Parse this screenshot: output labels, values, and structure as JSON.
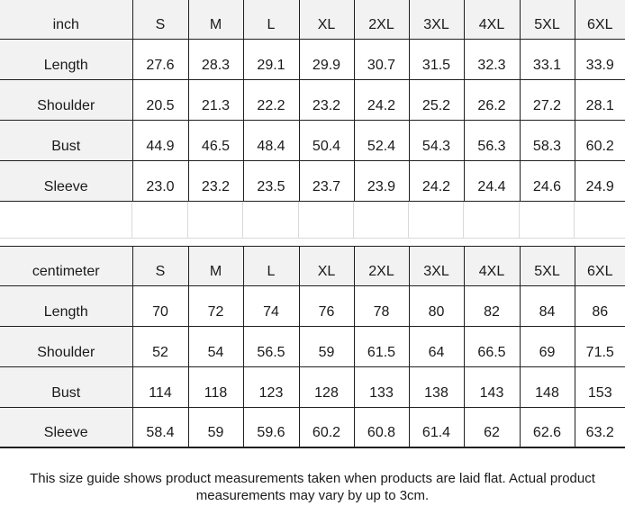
{
  "size_guide": {
    "tables": [
      {
        "unit_label": "inch",
        "sizes": [
          "S",
          "M",
          "L",
          "XL",
          "2XL",
          "3XL",
          "4XL",
          "5XL",
          "6XL"
        ],
        "rows": [
          {
            "label": "Length",
            "values": [
              "27.6",
              "28.3",
              "29.1",
              "29.9",
              "30.7",
              "31.5",
              "32.3",
              "33.1",
              "33.9"
            ]
          },
          {
            "label": "Shoulder",
            "values": [
              "20.5",
              "21.3",
              "22.2",
              "23.2",
              "24.2",
              "25.2",
              "26.2",
              "27.2",
              "28.1"
            ]
          },
          {
            "label": "Bust",
            "values": [
              "44.9",
              "46.5",
              "48.4",
              "50.4",
              "52.4",
              "54.3",
              "56.3",
              "58.3",
              "60.2"
            ]
          },
          {
            "label": "Sleeve",
            "values": [
              "23.0",
              "23.2",
              "23.5",
              "23.7",
              "23.9",
              "24.2",
              "24.4",
              "24.6",
              "24.9"
            ]
          }
        ]
      },
      {
        "unit_label": "centimeter",
        "sizes": [
          "S",
          "M",
          "L",
          "XL",
          "2XL",
          "3XL",
          "4XL",
          "5XL",
          "6XL"
        ],
        "rows": [
          {
            "label": "Length",
            "values": [
              "70",
              "72",
              "74",
              "76",
              "78",
              "80",
              "82",
              "84",
              "86"
            ]
          },
          {
            "label": "Shoulder",
            "values": [
              "52",
              "54",
              "56.5",
              "59",
              "61.5",
              "64",
              "66.5",
              "69",
              "71.5"
            ]
          },
          {
            "label": "Bust",
            "values": [
              "114",
              "118",
              "123",
              "128",
              "133",
              "138",
              "143",
              "148",
              "153"
            ]
          },
          {
            "label": "Sleeve",
            "values": [
              "58.4",
              "59",
              "59.6",
              "60.2",
              "60.8",
              "61.4",
              "62",
              "62.6",
              "63.2"
            ]
          }
        ]
      }
    ],
    "footnote": "This size guide shows product measurements taken when products are laid flat. Actual product measurements may vary by up to 3cm.",
    "colors": {
      "header_bg": "#f2f2f2",
      "border_dark": "#1f1f1f",
      "gridline_light": "#d9d9d9",
      "text": "#1a1a1a"
    }
  },
  "chart_data": [
    {
      "type": "table",
      "title": "inch",
      "columns": [
        "inch",
        "S",
        "M",
        "L",
        "XL",
        "2XL",
        "3XL",
        "4XL",
        "5XL",
        "6XL"
      ],
      "rows": [
        [
          "Length",
          27.6,
          28.3,
          29.1,
          29.9,
          30.7,
          31.5,
          32.3,
          33.1,
          33.9
        ],
        [
          "Shoulder",
          20.5,
          21.3,
          22.2,
          23.2,
          24.2,
          25.2,
          26.2,
          27.2,
          28.1
        ],
        [
          "Bust",
          44.9,
          46.5,
          48.4,
          50.4,
          52.4,
          54.3,
          56.3,
          58.3,
          60.2
        ],
        [
          "Sleeve",
          23.0,
          23.2,
          23.5,
          23.7,
          23.9,
          24.2,
          24.4,
          24.6,
          24.9
        ]
      ]
    },
    {
      "type": "table",
      "title": "centimeter",
      "columns": [
        "centimeter",
        "S",
        "M",
        "L",
        "XL",
        "2XL",
        "3XL",
        "4XL",
        "5XL",
        "6XL"
      ],
      "rows": [
        [
          "Length",
          70,
          72,
          74,
          76,
          78,
          80,
          82,
          84,
          86
        ],
        [
          "Shoulder",
          52,
          54,
          56.5,
          59,
          61.5,
          64,
          66.5,
          69,
          71.5
        ],
        [
          "Bust",
          114,
          118,
          123,
          128,
          133,
          138,
          143,
          148,
          153
        ],
        [
          "Sleeve",
          58.4,
          59,
          59.6,
          60.2,
          60.8,
          61.4,
          62,
          62.6,
          63.2
        ]
      ]
    }
  ]
}
